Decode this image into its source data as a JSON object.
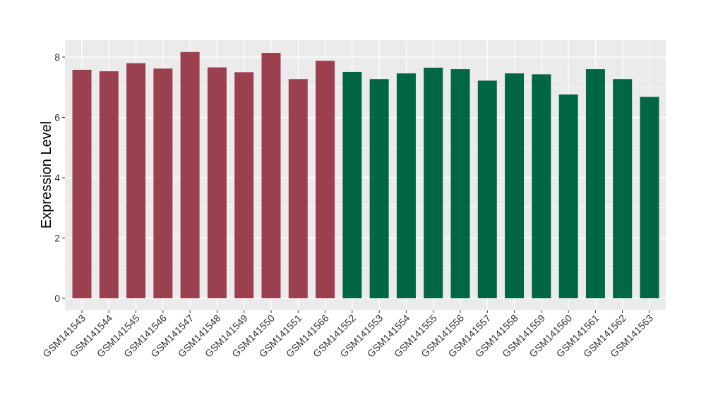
{
  "chart_data": {
    "type": "bar",
    "ylabel": "Expression Level",
    "xlabel": "",
    "ylim": [
      0,
      8.4
    ],
    "yticks": [
      0,
      2,
      4,
      6,
      8
    ],
    "grid": true,
    "categories": [
      "GSM141543",
      "GSM141544",
      "GSM141545",
      "GSM141546",
      "GSM141547",
      "GSM141548",
      "GSM141549",
      "GSM141550",
      "GSM141551",
      "GSM141566",
      "GSM141552",
      "GSM141553",
      "GSM141554",
      "GSM141555",
      "GSM141556",
      "GSM141557",
      "GSM141558",
      "GSM141559",
      "GSM141560",
      "GSM141561",
      "GSM141562",
      "GSM141563"
    ],
    "values": [
      7.58,
      7.53,
      7.8,
      7.62,
      8.17,
      7.66,
      7.5,
      8.14,
      7.27,
      7.88,
      7.51,
      7.27,
      7.46,
      7.65,
      7.6,
      7.22,
      7.46,
      7.43,
      6.76,
      7.6,
      7.27,
      6.68
    ],
    "group_colors": [
      "#9b404f",
      "#9b404f",
      "#9b404f",
      "#9b404f",
      "#9b404f",
      "#9b404f",
      "#9b404f",
      "#9b404f",
      "#9b404f",
      "#9b404f",
      "#006644",
      "#006644",
      "#006644",
      "#006644",
      "#006644",
      "#006644",
      "#006644",
      "#006644",
      "#006644",
      "#006644",
      "#006644",
      "#006644"
    ],
    "panel_background": "#ebebeb",
    "grid_color": "#ffffff"
  }
}
